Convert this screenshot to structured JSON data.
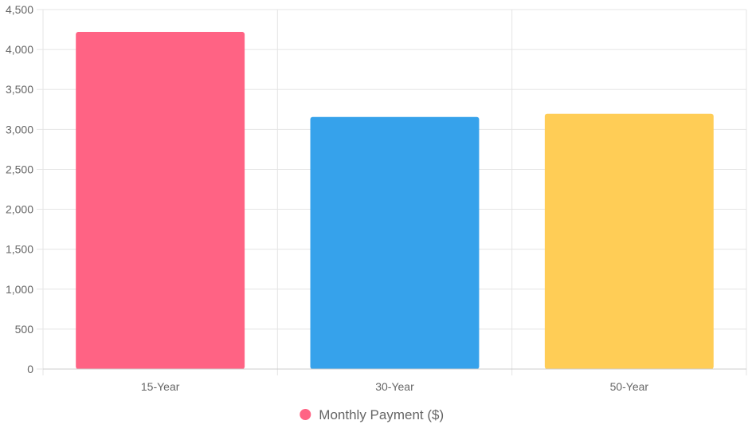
{
  "chart_data": {
    "type": "bar",
    "categories": [
      "15-Year",
      "30-Year",
      "50-Year"
    ],
    "series": [
      {
        "name": "Monthly Payment ($)",
        "values": [
          4220,
          3155,
          3195
        ],
        "colors": [
          "#ff6384",
          "#36a2eb",
          "#ffcd56"
        ]
      }
    ],
    "ylim": [
      0,
      4500
    ],
    "yticks": [
      "0",
      "500",
      "1,000",
      "1,500",
      "2,000",
      "2,500",
      "3,000",
      "3,500",
      "4,000",
      "4,500"
    ],
    "ytick_values": [
      0,
      500,
      1000,
      1500,
      2000,
      2500,
      3000,
      3500,
      4000,
      4500
    ],
    "grid": true,
    "legend_position": "bottom",
    "legend_marker_color": "#ff6384"
  }
}
